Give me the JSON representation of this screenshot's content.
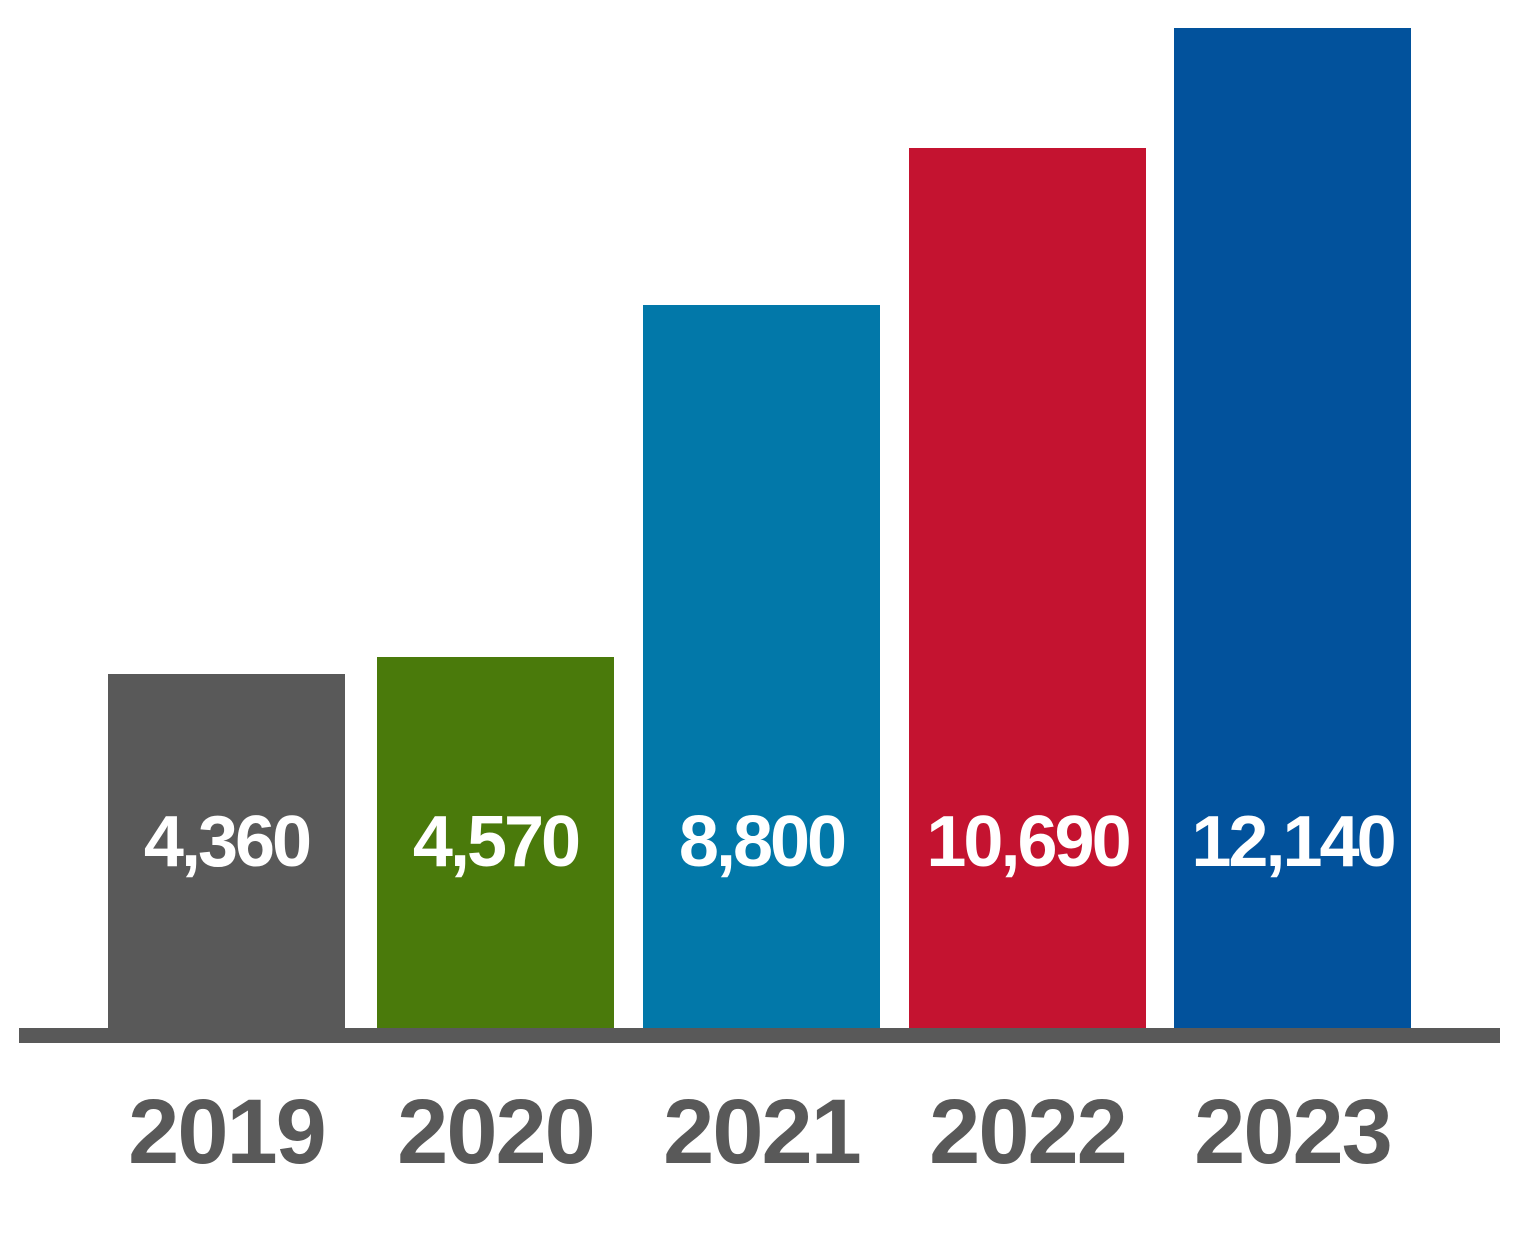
{
  "chart_data": {
    "type": "bar",
    "title": "",
    "xlabel": "",
    "ylabel": "",
    "categories": [
      "2019",
      "2020",
      "2021",
      "2022",
      "2023"
    ],
    "values": [
      4360,
      4570,
      8800,
      10690,
      12140
    ],
    "value_labels": [
      "4,360",
      "4,570",
      "8,800",
      "10,690",
      "12,140"
    ],
    "bar_colors": [
      "#595959",
      "#4A7A0B",
      "#0278A9",
      "#C41330",
      "#02529C"
    ],
    "ylim": [
      0,
      12500
    ],
    "grid": false,
    "legend": false,
    "value_label_position": "inside-fixed-height",
    "value_label_color": "#FFFFFF",
    "category_label_color": "#595959",
    "axis_line_color": "#595959",
    "background_color": "#FFFFFF"
  }
}
